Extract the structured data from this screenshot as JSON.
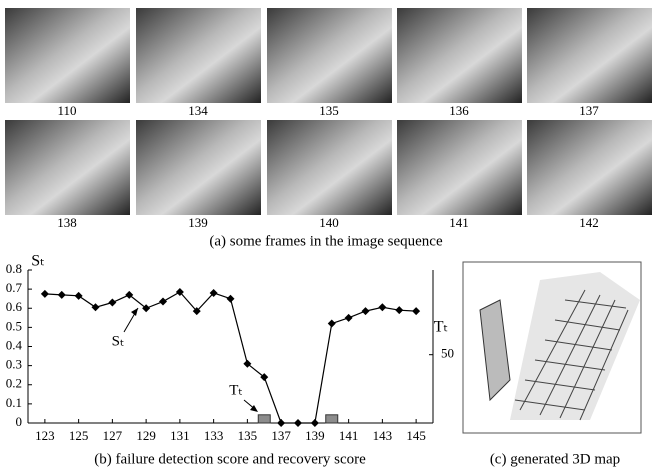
{
  "frames": {
    "labels": [
      "110",
      "134",
      "135",
      "136",
      "137",
      "138",
      "139",
      "140",
      "141",
      "142"
    ],
    "caption": "(a) some frames in the image sequence"
  },
  "chart_data": {
    "type": "line",
    "caption": "(b) failure detection score and recovery score",
    "y_label": "Sₜ",
    "y2_label": "Tₜ",
    "x": [
      123,
      124,
      125,
      126,
      127,
      128,
      129,
      130,
      131,
      132,
      133,
      134,
      135,
      136,
      137,
      138,
      139,
      140,
      141,
      142,
      143,
      144,
      145
    ],
    "xlim": [
      122,
      146
    ],
    "xticks": [
      123,
      125,
      127,
      129,
      131,
      133,
      135,
      137,
      139,
      141,
      143,
      145
    ],
    "ylim": [
      0,
      0.8
    ],
    "yticks": [
      0,
      0.1,
      0.2,
      0.3,
      0.4,
      0.5,
      0.6,
      0.7,
      0.8
    ],
    "y2lim": [
      0,
      112
    ],
    "y2ticks": [
      50
    ],
    "series": [
      {
        "name": "Sₜ",
        "color": "#000000",
        "values": [
          0.675,
          0.67,
          0.665,
          0.605,
          0.63,
          0.67,
          0.6,
          0.635,
          0.685,
          0.585,
          0.68,
          0.65,
          0.31,
          0.24,
          0,
          0,
          0,
          0.52,
          0.55,
          0.585,
          0.605,
          0.59,
          0.585
        ]
      },
      {
        "name": "Tₜ",
        "type": "bar",
        "axis": "y2",
        "color": "#8c8c8c",
        "values": [
          null,
          null,
          null,
          null,
          null,
          null,
          null,
          null,
          null,
          null,
          null,
          null,
          null,
          6,
          null,
          null,
          null,
          6,
          null,
          null,
          null,
          null,
          null
        ]
      }
    ]
  },
  "map": {
    "caption": "(c) generated 3D map"
  }
}
